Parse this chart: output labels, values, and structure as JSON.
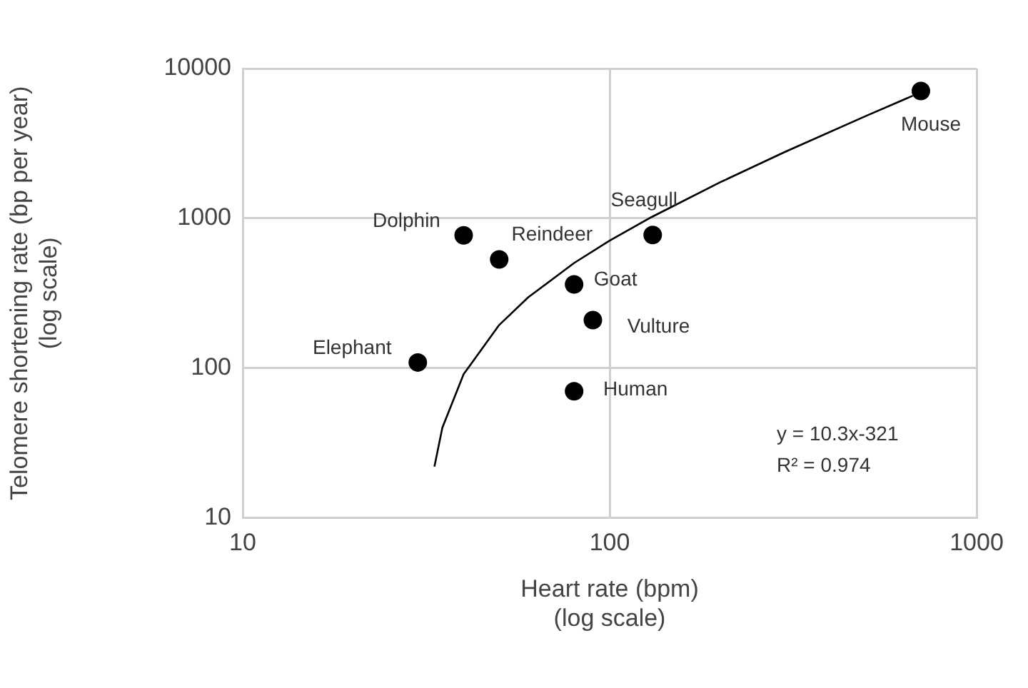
{
  "chart_data": {
    "type": "scatter",
    "xlabel": "Heart rate (bpm)\n(log scale)",
    "ylabel": "Telomere shortening rate (bp per year)\n(log scale)",
    "series": [
      {
        "color": "#000000",
        "marker": "circle",
        "x": [
          705,
          40,
          50,
          80,
          131,
          90,
          30,
          80
        ],
        "values": [
          7080,
          769,
          531,
          362,
          774,
          209,
          109,
          70
        ]
      },
      {
        "type": "line",
        "color": "#000000",
        "marker": "none",
        "line_style": "solid",
        "x": [
          33.3,
          35,
          40,
          50,
          60,
          80,
          100,
          130,
          200,
          300,
          500,
          670
        ],
        "values": [
          22,
          40,
          91,
          194,
          297,
          503,
          709,
          1018,
          1739,
          2769,
          4829,
          6580
        ]
      }
    ],
    "annotations": [
      {
        "text": "Mouse",
        "x": 705,
        "y": 7080
      },
      {
        "text": "Dolphin",
        "x": 40,
        "y": 769
      },
      {
        "text": "Reindeer",
        "x": 50,
        "y": 531
      },
      {
        "text": "Seagull",
        "x": 131,
        "y": 774
      },
      {
        "text": "Goat",
        "x": 80,
        "y": 362
      },
      {
        "text": "Vulture",
        "x": 90,
        "y": 209
      },
      {
        "text": "Elephant",
        "x": 30,
        "y": 109
      },
      {
        "text": "Human",
        "x": 80,
        "y": 70
      },
      "y = 10.3x-321",
      "R² = 0.974"
    ],
    "log": "xy",
    "xlim": [
      10,
      1000
    ],
    "ylim": [
      10,
      10000
    ],
    "xticks": [
      10,
      100,
      1000
    ],
    "yticks": [
      10,
      100,
      1000,
      10000
    ],
    "grid": true,
    "legend": false
  }
}
